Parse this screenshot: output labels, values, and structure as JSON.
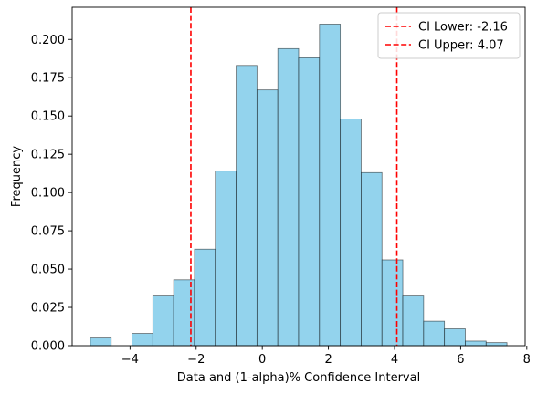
{
  "chart_data": {
    "type": "bar",
    "subtype": "histogram",
    "title": "",
    "xlabel": "Data and (1-alpha)% Confidence Interval",
    "ylabel": "Frequency",
    "xlim": [
      -5.75,
      7.95
    ],
    "ylim": [
      0,
      0.221
    ],
    "x_ticks": [
      -4,
      -2,
      0,
      2,
      4,
      6,
      8
    ],
    "x_tick_labels": [
      "−4",
      "−2",
      "0",
      "2",
      "4",
      "6",
      "8"
    ],
    "y_ticks": [
      0.0,
      0.025,
      0.05,
      0.075,
      0.1,
      0.125,
      0.15,
      0.175,
      0.2
    ],
    "y_tick_labels": [
      "0.000",
      "0.025",
      "0.050",
      "0.075",
      "0.100",
      "0.125",
      "0.150",
      "0.175",
      "0.200"
    ],
    "grid": false,
    "bar_color": "#87CEEB",
    "bar_edge_color": "#000000",
    "bin_width": 0.63,
    "bins": [
      {
        "x0": -5.2,
        "value": 0.005
      },
      {
        "x0": -4.57,
        "value": 0.0
      },
      {
        "x0": -3.94,
        "value": 0.008
      },
      {
        "x0": -3.31,
        "value": 0.033
      },
      {
        "x0": -2.68,
        "value": 0.043
      },
      {
        "x0": -2.05,
        "value": 0.063
      },
      {
        "x0": -1.42,
        "value": 0.114
      },
      {
        "x0": -0.79,
        "value": 0.183
      },
      {
        "x0": -0.16,
        "value": 0.167
      },
      {
        "x0": 0.47,
        "value": 0.194
      },
      {
        "x0": 1.1,
        "value": 0.188
      },
      {
        "x0": 1.73,
        "value": 0.21
      },
      {
        "x0": 2.36,
        "value": 0.148
      },
      {
        "x0": 2.99,
        "value": 0.113
      },
      {
        "x0": 3.62,
        "value": 0.056
      },
      {
        "x0": 4.25,
        "value": 0.033
      },
      {
        "x0": 4.88,
        "value": 0.016
      },
      {
        "x0": 5.51,
        "value": 0.011
      },
      {
        "x0": 6.14,
        "value": 0.003
      },
      {
        "x0": 6.77,
        "value": 0.002
      }
    ],
    "ci_lines": [
      {
        "label": "CI Lower: -2.16",
        "x": -2.16,
        "color": "#FF0000",
        "style": "dashed"
      },
      {
        "label": "CI Upper: 4.07",
        "x": 4.07,
        "color": "#FF0000",
        "style": "dashed"
      }
    ],
    "legend": {
      "position": "top-right"
    }
  }
}
